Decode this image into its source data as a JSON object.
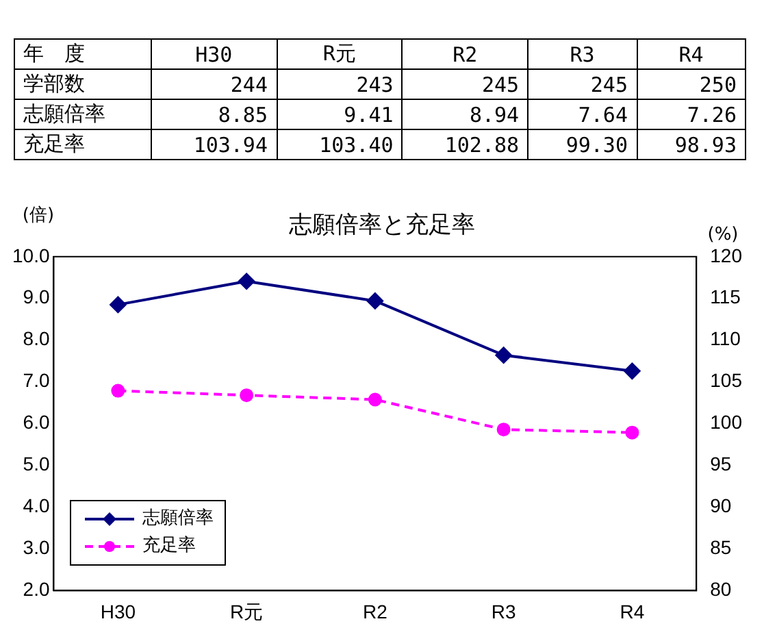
{
  "chart_data": [
    {
      "type": "other",
      "annotations": [
        "年　度"
      ],
      "categories": [
        "H30",
        "R元",
        "R2",
        "R3",
        "R4"
      ],
      "series": [
        {
          "name": "学部数",
          "values": [
            244,
            243,
            245,
            245,
            250
          ],
          "value_labels": [
            "244",
            "243",
            "245",
            "245",
            "250"
          ]
        },
        {
          "name": "志願倍率",
          "values": [
            8.85,
            9.41,
            8.94,
            7.64,
            7.26
          ],
          "value_labels": [
            "8.85",
            "9.41",
            "8.94",
            "7.64",
            "7.26"
          ]
        },
        {
          "name": "充足率",
          "values": [
            103.94,
            103.4,
            102.88,
            99.3,
            98.93
          ],
          "value_labels": [
            "103.94",
            "103.40",
            "102.88",
            "99.30",
            "98.93"
          ]
        }
      ]
    },
    {
      "type": "line",
      "title": "志願倍率と充足率",
      "ylabel": "(倍)",
      "y2label": "(%)",
      "categories": [
        "H30",
        "R元",
        "R2",
        "R3",
        "R4"
      ],
      "series": [
        {
          "name": "志願倍率",
          "color": "#000080",
          "values": [
            8.85,
            9.41,
            8.94,
            7.64,
            7.26
          ],
          "marker": "diamond",
          "line_style": "solid"
        },
        {
          "name": "充足率",
          "color": "#ff00ff",
          "values": [
            103.94,
            103.4,
            102.88,
            99.3,
            98.93
          ],
          "axis": "y2",
          "marker": "circle",
          "line_style": "dashed"
        }
      ],
      "ylim": [
        2,
        10
      ],
      "yticks": [
        {
          "value": 2,
          "label": "2.0"
        },
        {
          "value": 3,
          "label": "3.0"
        },
        {
          "value": 4,
          "label": "4.0"
        },
        {
          "value": 5,
          "label": "5.0"
        },
        {
          "value": 6,
          "label": "6.0"
        },
        {
          "value": 7,
          "label": "7.0"
        },
        {
          "value": 8,
          "label": "8.0"
        },
        {
          "value": 9,
          "label": "9.0"
        },
        {
          "value": 10,
          "label": "10.0"
        }
      ],
      "y2lim": [
        80,
        120
      ],
      "y2ticks": [
        80,
        85,
        90,
        95,
        100,
        105,
        110,
        115,
        120
      ],
      "grid": false,
      "legend": "bottom left"
    }
  ]
}
